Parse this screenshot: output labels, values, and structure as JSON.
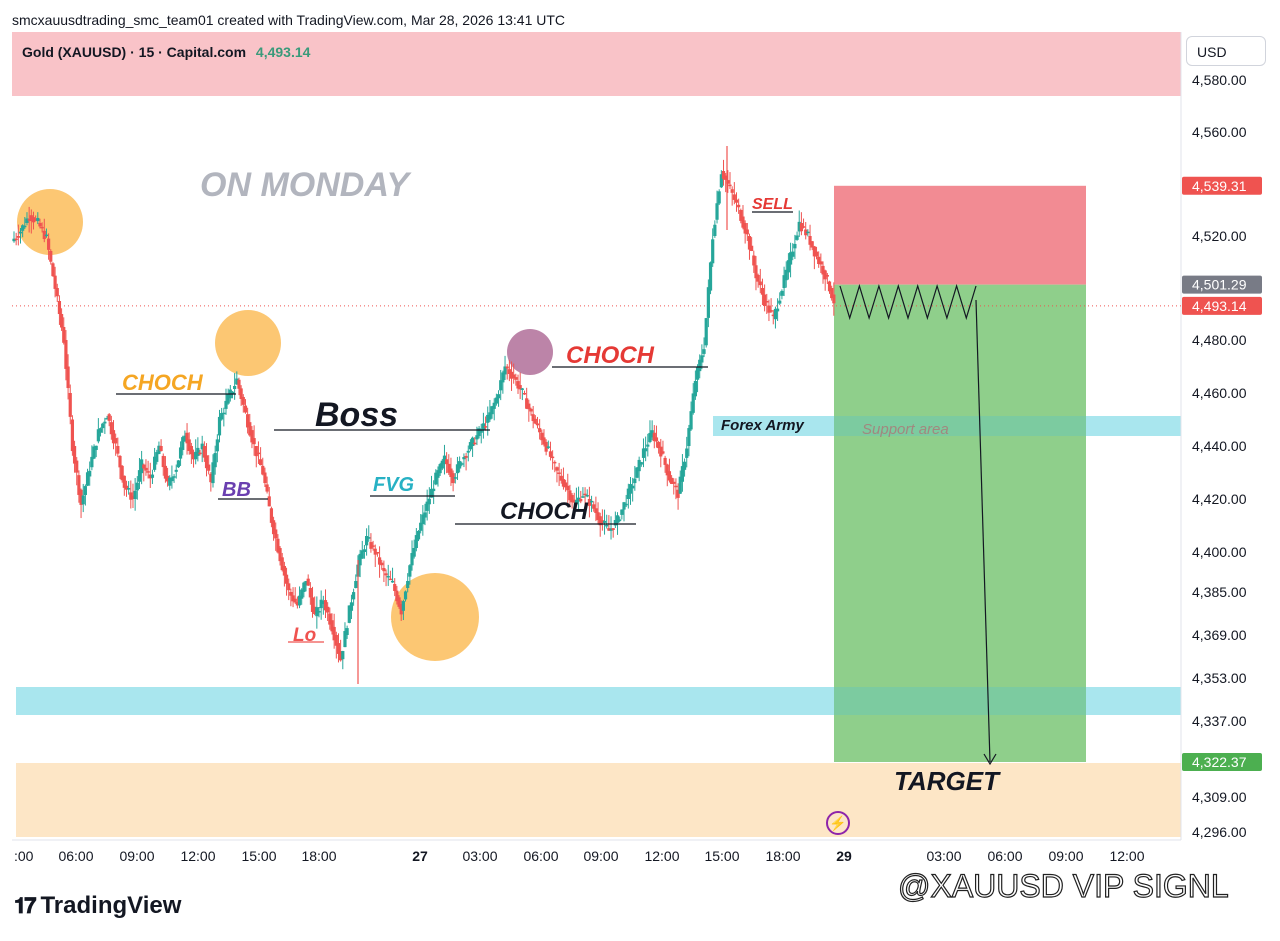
{
  "attribution": "smcxauusdtrading_smc_team01 created with TradingView.com, Mar 28, 2026 13:41 UTC",
  "symbol": {
    "name": "Gold (XAUUSD) · 15 · Capital.com",
    "last": "4,493.14"
  },
  "currency": "USD",
  "brand": "TradingView",
  "watermark": "@XAUUSD VIP SIGNL",
  "colors": {
    "up": "#26a69a",
    "down": "#ef5350",
    "header_band": "#f9c3c8",
    "stop_zone": "#f28b93",
    "target_zone": "#8fcf8b",
    "support_zone": "#a9e6ee",
    "bottom_zone": "#fde6c6",
    "orange_circle": "#fbbd5a",
    "purple_circle": "#b5779f"
  },
  "chart_data": {
    "type": "candlestick",
    "symbol": "XAUUSD",
    "timeframe": "15",
    "y_ticks": [
      "4,580.00",
      "4,560.00",
      "4,520.00",
      "4,480.00",
      "4,460.00",
      "4,440.00",
      "4,420.00",
      "4,400.00",
      "4,385.00",
      "4,369.00",
      "4,353.00",
      "4,337.00",
      "4,309.00",
      "4,296.00"
    ],
    "x_ticks": [
      ":00",
      "06:00",
      "09:00",
      "12:00",
      "15:00",
      "18:00",
      "27",
      "03:00",
      "06:00",
      "09:00",
      "12:00",
      "15:00",
      "18:00",
      "29",
      "03:00",
      "06:00",
      "09:00",
      "12:00"
    ],
    "price_tags": [
      {
        "label": "4,539.31",
        "color": "#ef5350"
      },
      {
        "label": "4,501.29",
        "color": "#787b86"
      },
      {
        "label": "4,493.14",
        "color": "#ef5350"
      },
      {
        "label": "4,322.37",
        "color": "#4caf50"
      }
    ],
    "last_price": 4493.14,
    "entry": 4501.29,
    "stop": 4539.31,
    "target": 4322.37,
    "path": [
      4518,
      4522,
      4528,
      4525,
      4519,
      4500,
      4480,
      4440,
      4418,
      4432,
      4445,
      4452,
      4440,
      4425,
      4420,
      4433,
      4428,
      4440,
      4425,
      4432,
      4445,
      4435,
      4440,
      4426,
      4450,
      4458,
      4465,
      4452,
      4440,
      4430,
      4412,
      4398,
      4385,
      4380,
      4390,
      4376,
      4382,
      4372,
      4360,
      4378,
      4395,
      4405,
      4400,
      4392,
      4388,
      4378,
      4395,
      4408,
      4418,
      4428,
      4435,
      4428,
      4435,
      4440,
      4445,
      4450,
      4458,
      4470,
      4466,
      4460,
      4452,
      4445,
      4438,
      4430,
      4425,
      4418,
      4422,
      4418,
      4412,
      4408,
      4412,
      4420,
      4428,
      4438,
      4445,
      4438,
      4428,
      4422,
      4440,
      4465,
      4478,
      4520,
      4545,
      4538,
      4530,
      4520,
      4505,
      4495,
      4488,
      4500,
      4512,
      4525,
      4520,
      4512,
      4505,
      4495
    ],
    "annotations": [
      {
        "text": "ON MONDAY"
      },
      {
        "text": "CHOCH"
      },
      {
        "text": "BB"
      },
      {
        "text": "Boss"
      },
      {
        "text": "FVG"
      },
      {
        "text": "Lo"
      },
      {
        "text": "CHOCH"
      },
      {
        "text": "CHOCH"
      },
      {
        "text": "SELL"
      },
      {
        "text": "Forex Army"
      },
      {
        "text": "Support area"
      },
      {
        "text": "TARGET"
      }
    ]
  }
}
